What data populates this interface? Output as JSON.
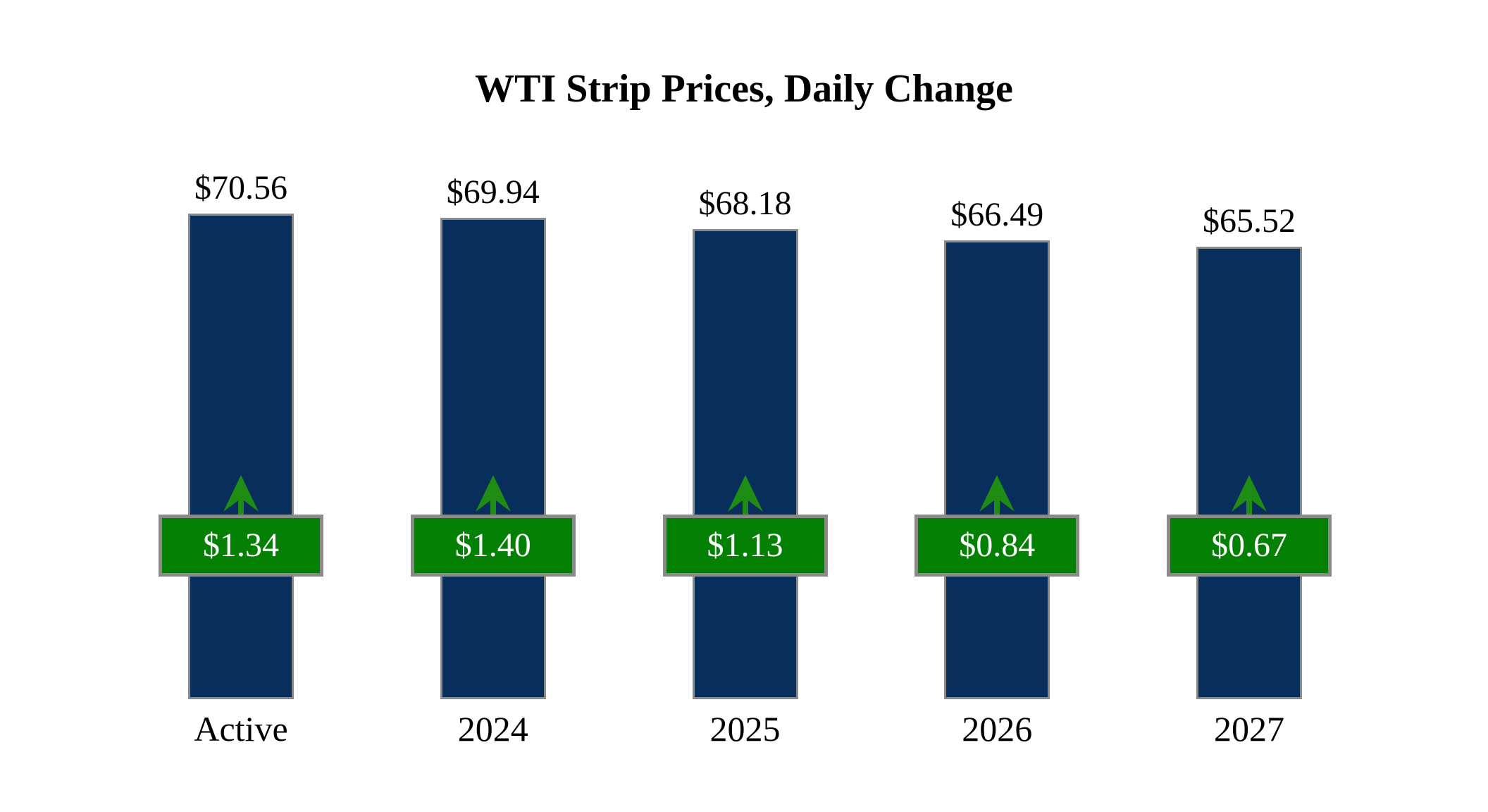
{
  "chart_data": {
    "type": "bar",
    "title": "WTI Strip Prices, Daily Change",
    "categories": [
      "Active",
      "2024",
      "2025",
      "2026",
      "2027"
    ],
    "series": [
      {
        "name": "Strip Price",
        "values": [
          70.56,
          69.94,
          68.18,
          66.49,
          65.52
        ],
        "labels": [
          "$70.56",
          "$69.94",
          "$68.18",
          "$66.49",
          "$65.52"
        ]
      },
      {
        "name": "Daily Change",
        "values": [
          1.34,
          1.4,
          1.13,
          0.84,
          0.67
        ],
        "labels": [
          "$1.34",
          "$1.40",
          "$1.13",
          "$0.84",
          "$0.67"
        ],
        "direction": "up"
      }
    ],
    "legend_position": "none",
    "grid": false,
    "axes_hidden": true,
    "colors": {
      "bar_fill": "#082e5c",
      "bar_border": "#8a8a8a",
      "badge_fill": "#048104",
      "badge_border": "#8a8a8a",
      "badge_text": "#ffffff",
      "arrow": "#1f8c14",
      "label_text": "#000000",
      "background": "#ffffff"
    }
  }
}
